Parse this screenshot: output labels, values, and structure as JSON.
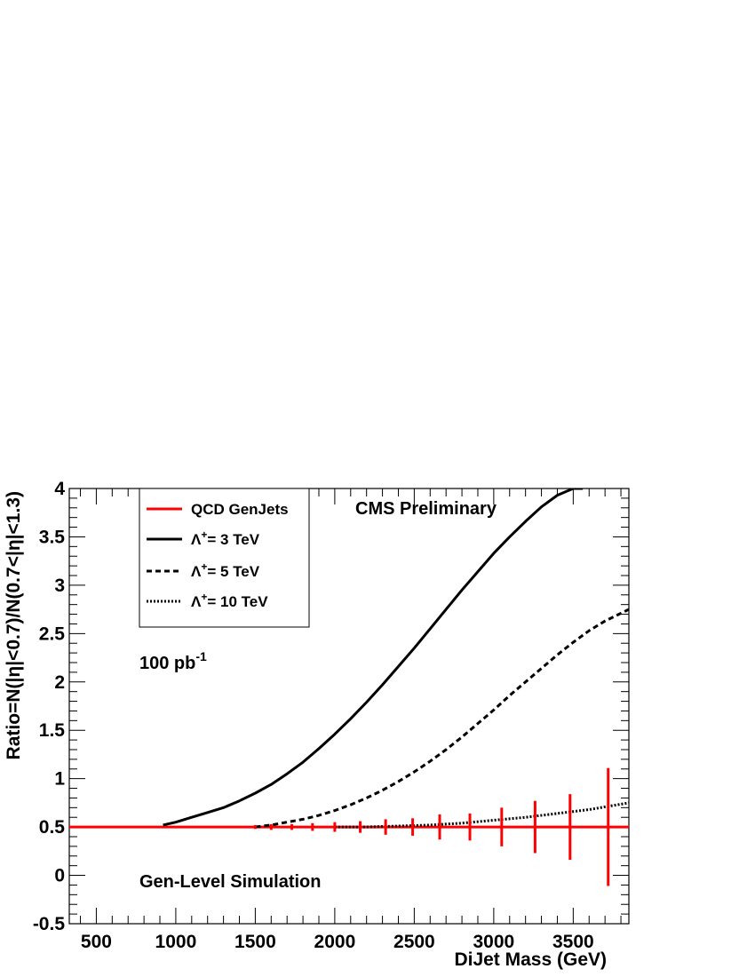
{
  "chart_data": {
    "type": "line",
    "xlabel": "DiJet Mass (GeV)",
    "ylabel": "Ratio=N(|η|<0.7)/N(0.7<|η|<1.3)",
    "xlim": [
      330,
      3850
    ],
    "ylim": [
      -0.5,
      4
    ],
    "x_ticks": [
      500,
      1000,
      1500,
      2000,
      2500,
      3000,
      3500
    ],
    "y_ticks": [
      -0.5,
      0,
      0.5,
      1,
      1.5,
      2,
      2.5,
      3,
      3.5,
      4
    ],
    "x_tick_labels": [
      "500",
      "1000",
      "1500",
      "2000",
      "2500",
      "3000",
      "3500"
    ],
    "y_tick_labels": [
      "-0.5",
      "0",
      "0.5",
      "1",
      "1.5",
      "2",
      "2.5",
      "3",
      "3.5",
      "4"
    ],
    "grid": false,
    "legend_position": "top-left",
    "series": [
      {
        "name": "QCD GenJets",
        "color": "#ff0000",
        "style": "solid",
        "x": [
          330,
          3850
        ],
        "y": [
          0.5,
          0.5
        ]
      },
      {
        "name_prefix": "Λ",
        "name_sup": "+",
        "name_suffix": "= 3 TeV",
        "color": "#000000",
        "style": "solid",
        "x": [
          920,
          1000,
          1100,
          1200,
          1300,
          1400,
          1500,
          1600,
          1700,
          1800,
          1900,
          2000,
          2100,
          2200,
          2300,
          2400,
          2500,
          2600,
          2700,
          2800,
          2900,
          3000,
          3100,
          3200,
          3300,
          3400,
          3500,
          3560
        ],
        "y": [
          0.52,
          0.55,
          0.6,
          0.65,
          0.7,
          0.77,
          0.85,
          0.94,
          1.05,
          1.17,
          1.31,
          1.46,
          1.62,
          1.79,
          1.97,
          2.16,
          2.35,
          2.55,
          2.75,
          2.95,
          3.14,
          3.33,
          3.5,
          3.66,
          3.81,
          3.93,
          4.0,
          4.0
        ]
      },
      {
        "name_prefix": "Λ",
        "name_sup": "+",
        "name_suffix": "= 5 TeV",
        "color": "#000000",
        "style": "dashed",
        "x": [
          1500,
          1600,
          1700,
          1800,
          1900,
          2000,
          2100,
          2200,
          2300,
          2400,
          2500,
          2600,
          2700,
          2800,
          2900,
          3000,
          3100,
          3200,
          3300,
          3400,
          3500,
          3600,
          3700,
          3850
        ],
        "y": [
          0.5,
          0.52,
          0.55,
          0.58,
          0.62,
          0.67,
          0.73,
          0.8,
          0.88,
          0.97,
          1.07,
          1.18,
          1.3,
          1.43,
          1.57,
          1.71,
          1.86,
          2.0,
          2.14,
          2.28,
          2.41,
          2.53,
          2.63,
          2.75
        ]
      },
      {
        "name_prefix": "Λ",
        "name_sup": "+",
        "name_suffix": "= 10 TeV",
        "color": "#000000",
        "style": "dotted",
        "x": [
          2000,
          2200,
          2400,
          2600,
          2800,
          3000,
          3200,
          3400,
          3600,
          3850
        ],
        "y": [
          0.5,
          0.5,
          0.51,
          0.52,
          0.54,
          0.57,
          0.6,
          0.64,
          0.68,
          0.75
        ]
      }
    ],
    "errorbars": {
      "name": "QCD GenJets",
      "color": "#ff0000",
      "x": [
        1500,
        1600,
        1730,
        1860,
        2000,
        2160,
        2320,
        2490,
        2660,
        2850,
        3050,
        3260,
        3480,
        3720
      ],
      "y": [
        0.5,
        0.5,
        0.5,
        0.5,
        0.5,
        0.5,
        0.5,
        0.5,
        0.5,
        0.5,
        0.5,
        0.5,
        0.5,
        0.5
      ],
      "err": [
        0.02,
        0.03,
        0.03,
        0.04,
        0.05,
        0.06,
        0.08,
        0.09,
        0.13,
        0.14,
        0.2,
        0.27,
        0.34,
        0.61
      ]
    },
    "annotations": {
      "cms": "CMS Preliminary",
      "lumi_base": "100 pb",
      "lumi_sup": "-1",
      "gen_level": "Gen-Level Simulation"
    }
  }
}
